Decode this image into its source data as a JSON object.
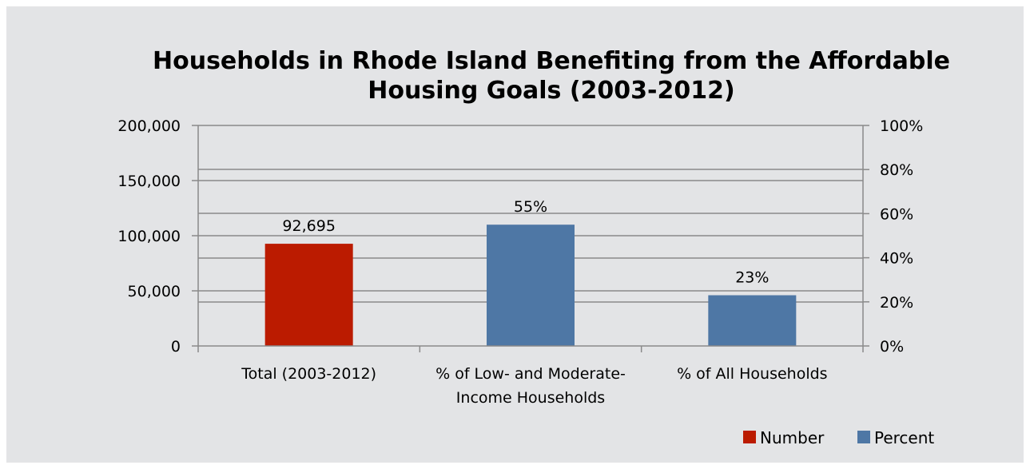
{
  "chart_data": {
    "type": "bar",
    "title_lines": [
      "Households in Rhode Island Benefiting from the Affordable",
      "Housing Goals (2003-2012)"
    ],
    "categories": [
      [
        "Total (2003-2012)"
      ],
      [
        "% of Low- and Moderate-",
        "Income Households"
      ],
      [
        "% of All Households"
      ]
    ],
    "series": [
      {
        "name": "Number",
        "axis": "left",
        "color": "#bb1b00",
        "values": [
          92695,
          null,
          null
        ],
        "labels": [
          "92,695",
          "",
          ""
        ]
      },
      {
        "name": "Percent",
        "axis": "right",
        "color": "#4e77a5",
        "values": [
          null,
          55,
          23
        ],
        "labels": [
          "",
          "55%",
          "23%"
        ]
      }
    ],
    "y_left": {
      "min": 0,
      "max": 200000,
      "ticks": [
        0,
        50000,
        100000,
        150000,
        200000
      ],
      "tick_labels": [
        "0",
        "50,000",
        "100,000",
        "150,000",
        "200,000"
      ]
    },
    "y_right": {
      "min": 0,
      "max": 100,
      "ticks": [
        0,
        20,
        40,
        60,
        80,
        100
      ],
      "tick_labels": [
        "0%",
        "20%",
        "40%",
        "60%",
        "80%",
        "100%"
      ]
    },
    "grid": true,
    "legend_position": "bottom-right"
  }
}
